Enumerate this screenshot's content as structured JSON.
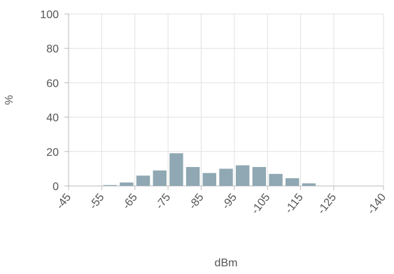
{
  "chart_data": {
    "type": "bar",
    "title": "",
    "xlabel": "dBm",
    "ylabel": "%",
    "xlim": [
      -45,
      -140
    ],
    "ylim": [
      0,
      100
    ],
    "grid": true,
    "y_ticks": [
      0,
      20,
      40,
      60,
      80,
      100
    ],
    "x_ticks": [
      -45,
      -55,
      -65,
      -75,
      -85,
      -95,
      -105,
      -115,
      -125,
      -140
    ],
    "x_tick_labels": [
      "-45",
      "-55",
      "-65",
      "-75",
      "-85",
      "-95",
      "-105",
      "-115",
      "-125",
      "-140"
    ],
    "y_tick_labels": [
      "0",
      "20",
      "40",
      "60",
      "80",
      "100"
    ],
    "bin_width": 5,
    "bars": [
      {
        "x": -55,
        "value": 0.5
      },
      {
        "x": -60,
        "value": 2
      },
      {
        "x": -65,
        "value": 6
      },
      {
        "x": -70,
        "value": 9
      },
      {
        "x": -75,
        "value": 19
      },
      {
        "x": -80,
        "value": 11
      },
      {
        "x": -85,
        "value": 7.5
      },
      {
        "x": -90,
        "value": 10
      },
      {
        "x": -95,
        "value": 12
      },
      {
        "x": -100,
        "value": 11
      },
      {
        "x": -105,
        "value": 7
      },
      {
        "x": -110,
        "value": 4.5
      },
      {
        "x": -115,
        "value": 1.5
      }
    ],
    "colors": {
      "bar": "#8fa8b3",
      "grid": "#e2e2e2",
      "axis": "#bbbbbb",
      "text": "#555555"
    }
  }
}
